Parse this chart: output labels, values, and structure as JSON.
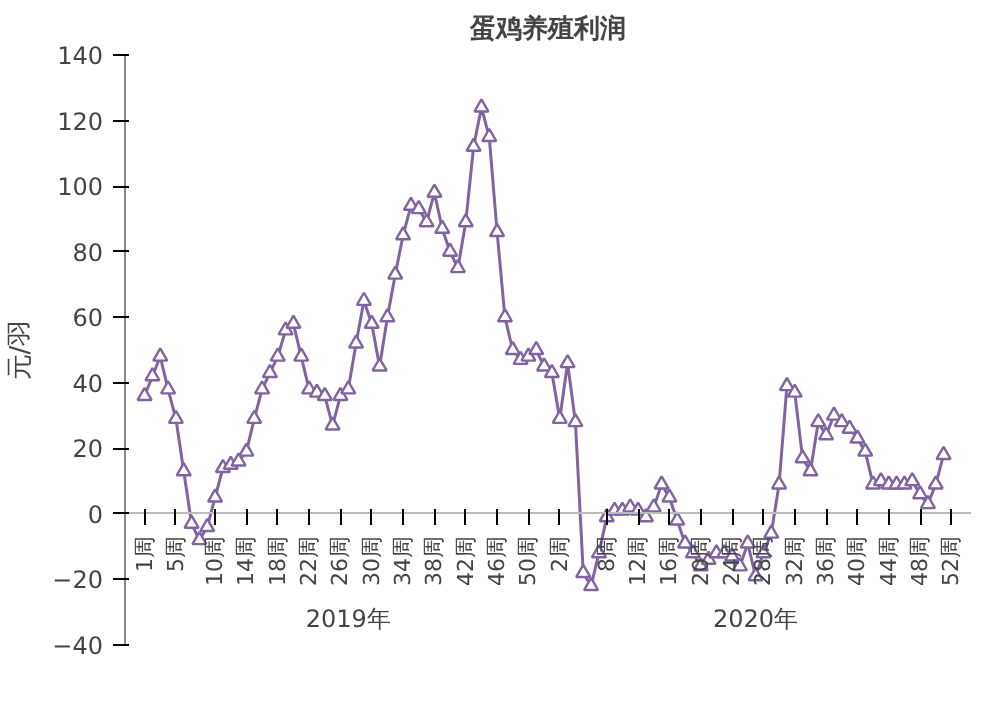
{
  "chart_data": {
    "type": "line",
    "title": "蛋鸡养殖利润",
    "ylabel": "元/羽",
    "categories": [
      "1周",
      null,
      null,
      null,
      "5周",
      null,
      null,
      null,
      null,
      "10周",
      null,
      null,
      null,
      "14周",
      null,
      null,
      null,
      "18周",
      null,
      null,
      null,
      "22周",
      null,
      null,
      null,
      "26周",
      null,
      null,
      null,
      "30周",
      null,
      null,
      null,
      "34周",
      null,
      null,
      null,
      "38周",
      null,
      null,
      null,
      "42周",
      null,
      null,
      null,
      "46周",
      null,
      null,
      null,
      "50周",
      null,
      null,
      null,
      "2周",
      null,
      null,
      null,
      null,
      null,
      "8周",
      null,
      null,
      null,
      "12周",
      null,
      null,
      null,
      "16周",
      null,
      null,
      null,
      "20周",
      null,
      null,
      null,
      "24周",
      null,
      null,
      null,
      "28周",
      null,
      null,
      null,
      "32周",
      null,
      null,
      null,
      "36周",
      null,
      null,
      null,
      "40周",
      null,
      null,
      null,
      "44周",
      null,
      null,
      null,
      "48周",
      null,
      null,
      null,
      "52周"
    ],
    "series": [
      {
        "color": "#8064a2",
        "values": [
          36,
          42,
          48,
          38,
          29,
          13,
          -3,
          -8,
          -4,
          5,
          14,
          15,
          16,
          19,
          29,
          38,
          43,
          48,
          56,
          58,
          48,
          38,
          37,
          36,
          27,
          36,
          38,
          52,
          65,
          58,
          45,
          60,
          73,
          85,
          94,
          93,
          89,
          98,
          87,
          80,
          75,
          89,
          112,
          124,
          115,
          86,
          60,
          50,
          47,
          48,
          50,
          45,
          43,
          29,
          46,
          28,
          -18,
          -22,
          -12,
          -1,
          1,
          1,
          2,
          1,
          -1,
          2,
          9,
          5,
          -2,
          -9,
          -12,
          -16,
          -14,
          -12,
          -12,
          -13,
          -16,
          -9,
          -19,
          -12,
          -6,
          9,
          39,
          37,
          17,
          13,
          28,
          24,
          30,
          28,
          26,
          23,
          19,
          9,
          10,
          9,
          9,
          9,
          10,
          6,
          3,
          9,
          18,
          null
        ]
      }
    ],
    "ylim": [
      -40,
      140
    ],
    "yticks": [
      -40,
      -20,
      0,
      20,
      40,
      60,
      80,
      100,
      120,
      140
    ],
    "marker": "triangle",
    "line_style": "solid",
    "grid": false,
    "annotations": [
      "2019年",
      "2020年"
    ]
  }
}
